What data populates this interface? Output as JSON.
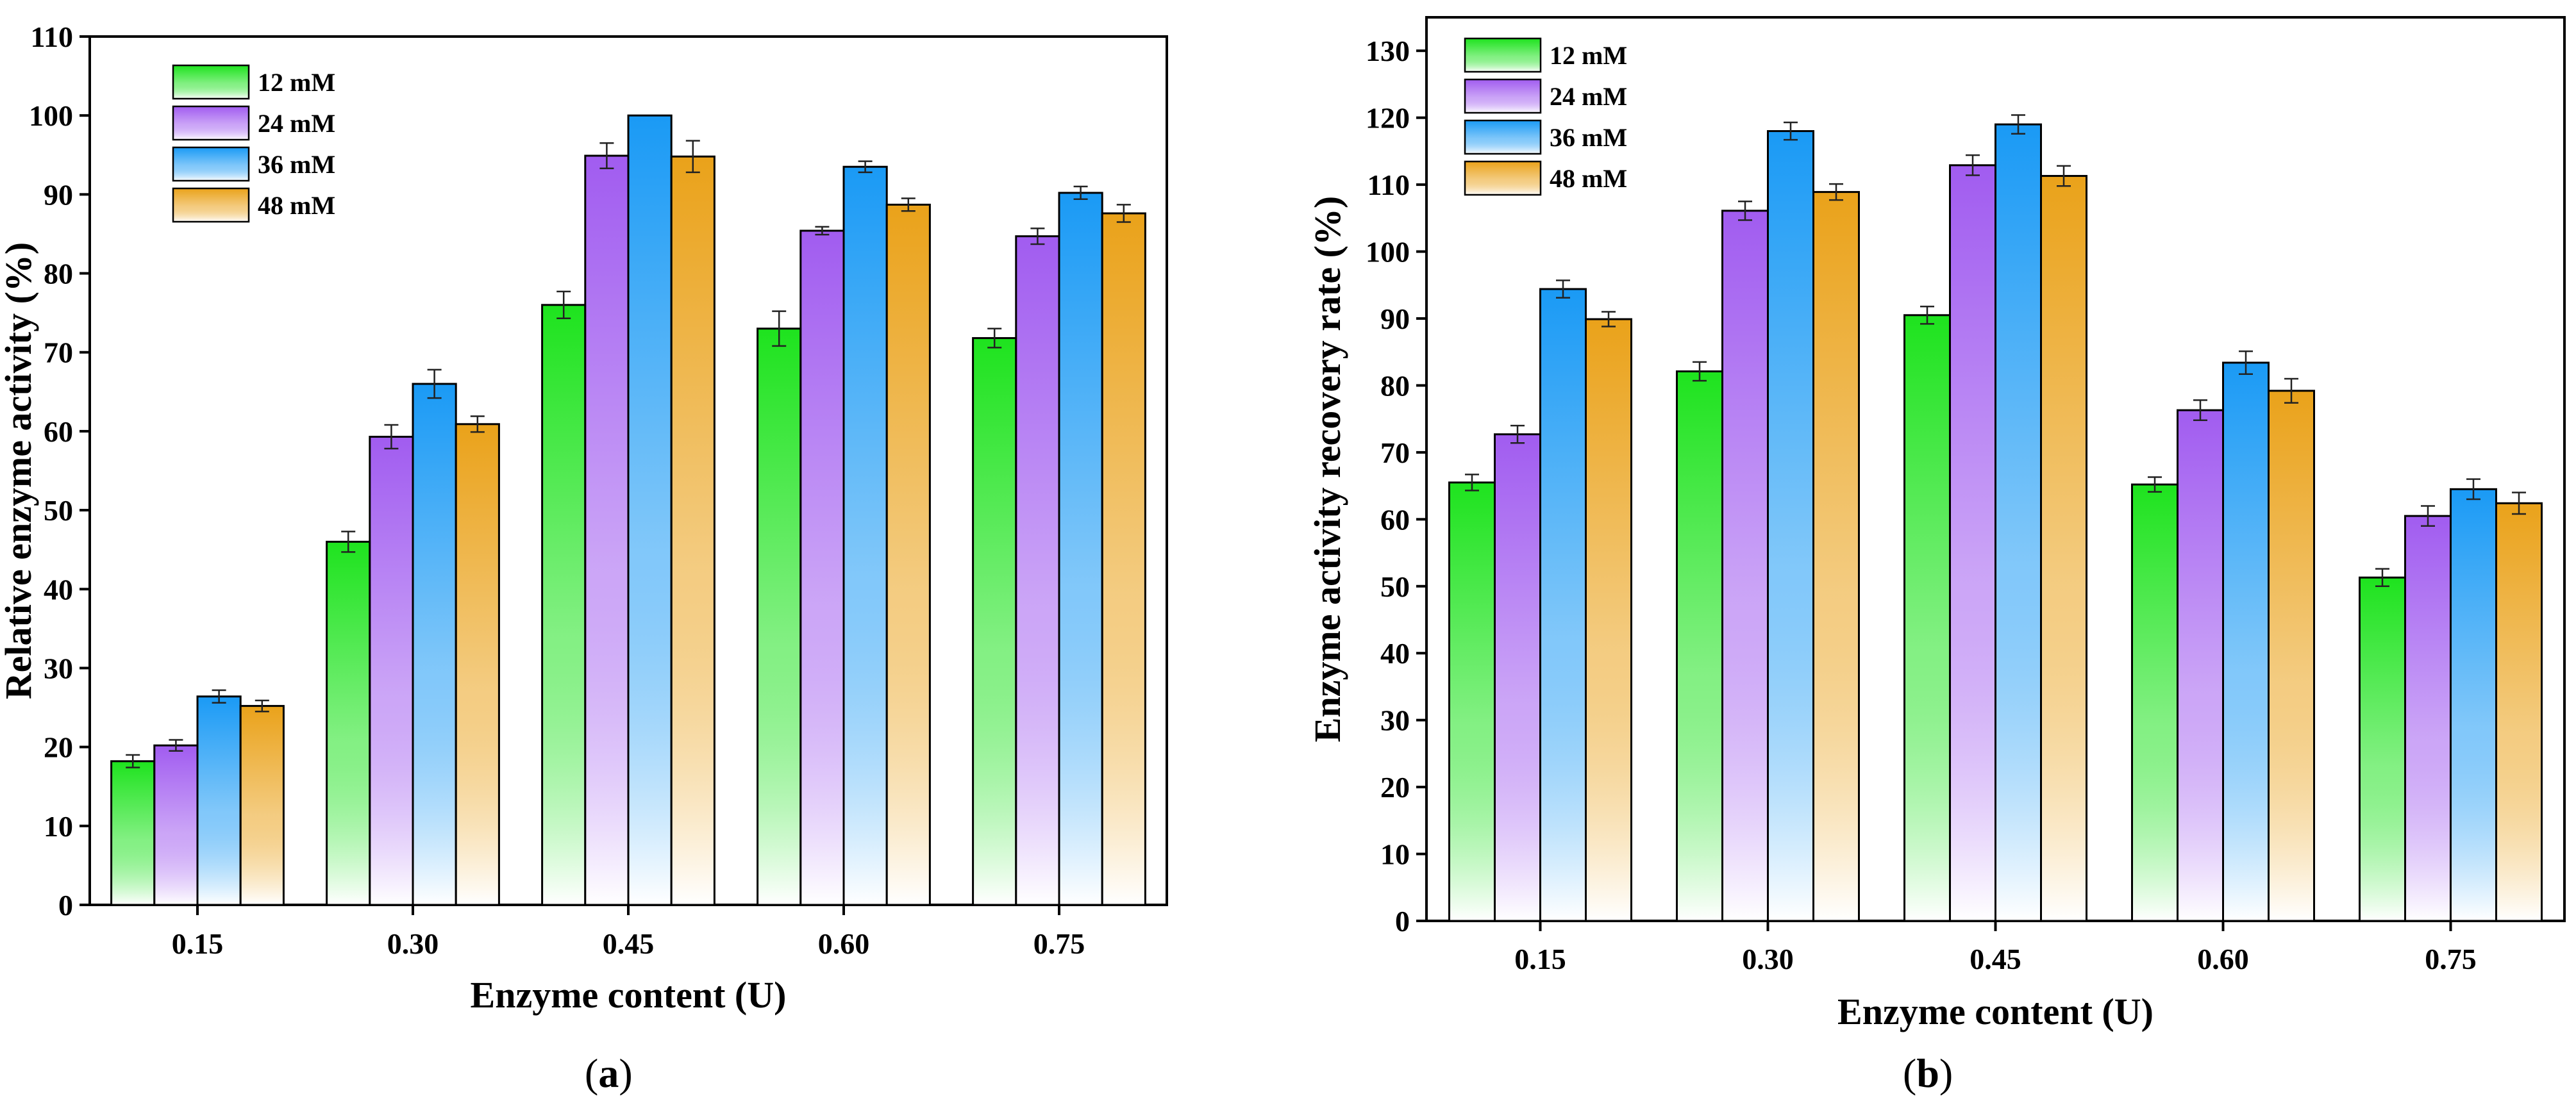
{
  "colors": {
    "12 mM": "#1ee31e",
    "24 mM": "#a15cf0",
    "36 mM": "#1a9af5",
    "48 mM": "#eaa21a"
  },
  "chart_data": [
    {
      "type": "bar",
      "panel": "a",
      "caption_left": "(",
      "caption_letter": "a",
      "caption_right": ")",
      "xlabel": "Enzyme content (U)",
      "ylabel": "Relative enzyme activity (%)",
      "ylim": [
        0,
        110
      ],
      "yticks": [
        0,
        10,
        20,
        30,
        40,
        50,
        60,
        70,
        80,
        90,
        100,
        110
      ],
      "categories": [
        "0.15",
        "0.30",
        "0.45",
        "0.60",
        "0.75"
      ],
      "legend_position": "top-left",
      "series": [
        {
          "name": "12 mM",
          "values": [
            18.2,
            46.0,
            76.0,
            73.0,
            71.8
          ],
          "errors": [
            0.8,
            1.3,
            1.7,
            2.2,
            1.2
          ]
        },
        {
          "name": "24 mM",
          "values": [
            20.2,
            59.3,
            94.9,
            85.4,
            84.7
          ],
          "errors": [
            0.7,
            1.5,
            1.6,
            0.5,
            1.0
          ]
        },
        {
          "name": "36 mM",
          "values": [
            26.4,
            66.0,
            100.0,
            93.5,
            90.2
          ],
          "errors": [
            0.8,
            1.8,
            0.0,
            0.7,
            0.8
          ]
        },
        {
          "name": "48 mM",
          "values": [
            25.2,
            60.9,
            94.8,
            88.7,
            87.6
          ],
          "errors": [
            0.7,
            1.0,
            2.0,
            0.8,
            1.1
          ]
        }
      ]
    },
    {
      "type": "bar",
      "panel": "b",
      "caption_left": "(",
      "caption_letter": "b",
      "caption_right": ")",
      "xlabel": "Enzyme content (U)",
      "ylabel": "Enzyme activity recovery rate (%)",
      "ylim": [
        0,
        135
      ],
      "yticks": [
        0,
        10,
        20,
        30,
        40,
        50,
        60,
        70,
        80,
        90,
        100,
        110,
        120,
        130
      ],
      "categories": [
        "0.15",
        "0.30",
        "0.45",
        "0.60",
        "0.75"
      ],
      "legend_position": "top-left",
      "series": [
        {
          "name": "12 mM",
          "values": [
            65.5,
            82.1,
            90.5,
            65.2,
            51.3
          ],
          "errors": [
            1.2,
            1.4,
            1.3,
            1.1,
            1.3
          ]
        },
        {
          "name": "24 mM",
          "values": [
            72.7,
            106.1,
            112.9,
            76.3,
            60.5
          ],
          "errors": [
            1.3,
            1.4,
            1.5,
            1.5,
            1.5
          ]
        },
        {
          "name": "36 mM",
          "values": [
            94.4,
            118.0,
            119.0,
            83.4,
            64.5
          ],
          "errors": [
            1.3,
            1.3,
            1.4,
            1.7,
            1.5
          ]
        },
        {
          "name": "48 mM",
          "values": [
            89.9,
            108.9,
            111.3,
            79.2,
            62.4
          ],
          "errors": [
            1.1,
            1.2,
            1.5,
            1.8,
            1.6
          ]
        }
      ]
    }
  ]
}
